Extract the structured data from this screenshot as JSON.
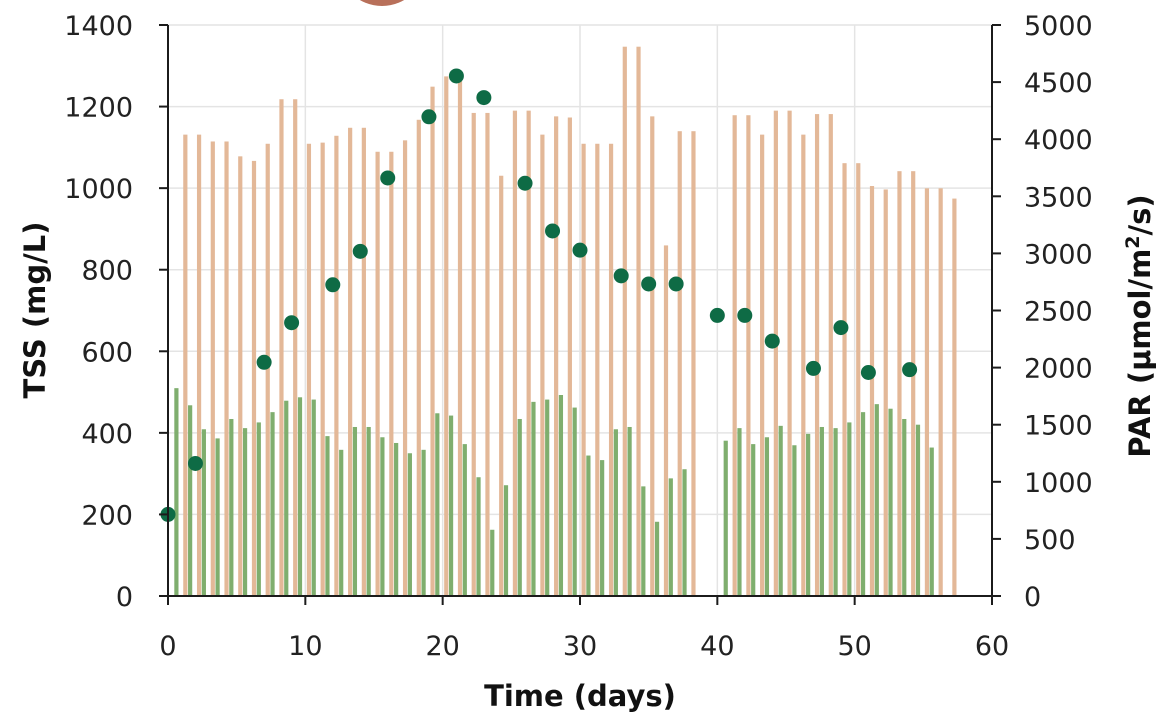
{
  "chart_data": {
    "type": "bar+scatter",
    "xlabel": "Time (days)",
    "ylabel_left": "TSS (mg/L)",
    "ylabel_right_prefix": "PAR (μmol/m",
    "ylabel_right_sup": "2",
    "ylabel_right_suffix": "/s)",
    "xlim": [
      0,
      60
    ],
    "ylim_left": [
      0,
      1400
    ],
    "ylim_right": [
      0,
      5000
    ],
    "x_ticks": [
      "0",
      "10",
      "20",
      "30",
      "40",
      "50",
      "60"
    ],
    "y_left_ticks": [
      "0",
      "200",
      "400",
      "600",
      "800",
      "1000",
      "1200",
      "1400"
    ],
    "y_right_ticks": [
      "0",
      "500",
      "1000",
      "1500",
      "2000",
      "2500",
      "3000",
      "3500",
      "4000",
      "4500",
      "5000"
    ],
    "grid": true,
    "colors": {
      "par_max": "#e3b898",
      "par_avg": "#7fae6e",
      "tss": "#0e6b45",
      "logo": "#b8705a"
    },
    "par_max_series": [
      {
        "day": 0,
        "value": 0
      },
      {
        "day": 1,
        "value": 4040
      },
      {
        "day": 2,
        "value": 4040
      },
      {
        "day": 3,
        "value": 3980
      },
      {
        "day": 4,
        "value": 3980
      },
      {
        "day": 5,
        "value": 3850
      },
      {
        "day": 6,
        "value": 3810
      },
      {
        "day": 7,
        "value": 3960
      },
      {
        "day": 8,
        "value": 4350
      },
      {
        "day": 9,
        "value": 4350
      },
      {
        "day": 10,
        "value": 3960
      },
      {
        "day": 11,
        "value": 3970
      },
      {
        "day": 12,
        "value": 4030
      },
      {
        "day": 13,
        "value": 4100
      },
      {
        "day": 14,
        "value": 4100
      },
      {
        "day": 15,
        "value": 3890
      },
      {
        "day": 16,
        "value": 3890
      },
      {
        "day": 17,
        "value": 3990
      },
      {
        "day": 18,
        "value": 4170
      },
      {
        "day": 19,
        "value": 4460
      },
      {
        "day": 20,
        "value": 4550
      },
      {
        "day": 21,
        "value": 4510
      },
      {
        "day": 22,
        "value": 4230
      },
      {
        "day": 23,
        "value": 4230
      },
      {
        "day": 24,
        "value": 3680
      },
      {
        "day": 25,
        "value": 4250
      },
      {
        "day": 26,
        "value": 4250
      },
      {
        "day": 27,
        "value": 4040
      },
      {
        "day": 28,
        "value": 4200
      },
      {
        "day": 29,
        "value": 4190
      },
      {
        "day": 30,
        "value": 3960
      },
      {
        "day": 31,
        "value": 3960
      },
      {
        "day": 32,
        "value": 3960
      },
      {
        "day": 33,
        "value": 4810
      },
      {
        "day": 34,
        "value": 4810
      },
      {
        "day": 35,
        "value": 4200
      },
      {
        "day": 36,
        "value": 3070
      },
      {
        "day": 37,
        "value": 4070
      },
      {
        "day": 38,
        "value": 4070
      },
      {
        "day": 39,
        "value": 0
      },
      {
        "day": 40,
        "value": 0
      },
      {
        "day": 41,
        "value": 4210
      },
      {
        "day": 42,
        "value": 4210
      },
      {
        "day": 43,
        "value": 4040
      },
      {
        "day": 44,
        "value": 4250
      },
      {
        "day": 45,
        "value": 4250
      },
      {
        "day": 46,
        "value": 4040
      },
      {
        "day": 47,
        "value": 4220
      },
      {
        "day": 48,
        "value": 4220
      },
      {
        "day": 49,
        "value": 3790
      },
      {
        "day": 50,
        "value": 3790
      },
      {
        "day": 51,
        "value": 3590
      },
      {
        "day": 52,
        "value": 3560
      },
      {
        "day": 53,
        "value": 3720
      },
      {
        "day": 54,
        "value": 3720
      },
      {
        "day": 55,
        "value": 3570
      },
      {
        "day": 56,
        "value": 3570
      },
      {
        "day": 57,
        "value": 3480
      }
    ],
    "par_avg_series": [
      {
        "day": 0,
        "value": 1820
      },
      {
        "day": 1,
        "value": 1670
      },
      {
        "day": 2,
        "value": 1460
      },
      {
        "day": 3,
        "value": 1380
      },
      {
        "day": 4,
        "value": 1550
      },
      {
        "day": 5,
        "value": 1470
      },
      {
        "day": 6,
        "value": 1520
      },
      {
        "day": 7,
        "value": 1610
      },
      {
        "day": 8,
        "value": 1710
      },
      {
        "day": 9,
        "value": 1740
      },
      {
        "day": 10,
        "value": 1720
      },
      {
        "day": 11,
        "value": 1400
      },
      {
        "day": 12,
        "value": 1280
      },
      {
        "day": 13,
        "value": 1480
      },
      {
        "day": 14,
        "value": 1480
      },
      {
        "day": 15,
        "value": 1390
      },
      {
        "day": 16,
        "value": 1340
      },
      {
        "day": 17,
        "value": 1250
      },
      {
        "day": 18,
        "value": 1280
      },
      {
        "day": 19,
        "value": 1600
      },
      {
        "day": 20,
        "value": 1580
      },
      {
        "day": 21,
        "value": 1330
      },
      {
        "day": 22,
        "value": 1040
      },
      {
        "day": 23,
        "value": 580
      },
      {
        "day": 24,
        "value": 970
      },
      {
        "day": 25,
        "value": 1550
      },
      {
        "day": 26,
        "value": 1700
      },
      {
        "day": 27,
        "value": 1720
      },
      {
        "day": 28,
        "value": 1760
      },
      {
        "day": 29,
        "value": 1650
      },
      {
        "day": 30,
        "value": 1230
      },
      {
        "day": 31,
        "value": 1190
      },
      {
        "day": 32,
        "value": 1460
      },
      {
        "day": 33,
        "value": 1480
      },
      {
        "day": 34,
        "value": 960
      },
      {
        "day": 35,
        "value": 650
      },
      {
        "day": 36,
        "value": 1030
      },
      {
        "day": 37,
        "value": 1110
      },
      {
        "day": 38,
        "value": 0
      },
      {
        "day": 39,
        "value": 0
      },
      {
        "day": 40,
        "value": 1360
      },
      {
        "day": 41,
        "value": 1470
      },
      {
        "day": 42,
        "value": 1330
      },
      {
        "day": 43,
        "value": 1390
      },
      {
        "day": 44,
        "value": 1490
      },
      {
        "day": 45,
        "value": 1320
      },
      {
        "day": 46,
        "value": 1420
      },
      {
        "day": 47,
        "value": 1480
      },
      {
        "day": 48,
        "value": 1470
      },
      {
        "day": 49,
        "value": 1520
      },
      {
        "day": 50,
        "value": 1610
      },
      {
        "day": 51,
        "value": 1680
      },
      {
        "day": 52,
        "value": 1640
      },
      {
        "day": 53,
        "value": 1550
      },
      {
        "day": 54,
        "value": 1500
      },
      {
        "day": 55,
        "value": 1300
      }
    ],
    "tss_series": [
      {
        "day": 0,
        "value": 200
      },
      {
        "day": 2,
        "value": 325
      },
      {
        "day": 7,
        "value": 573
      },
      {
        "day": 9,
        "value": 670
      },
      {
        "day": 12,
        "value": 763
      },
      {
        "day": 14,
        "value": 845
      },
      {
        "day": 16,
        "value": 1025
      },
      {
        "day": 19,
        "value": 1175
      },
      {
        "day": 21,
        "value": 1275
      },
      {
        "day": 23,
        "value": 1222
      },
      {
        "day": 26,
        "value": 1012
      },
      {
        "day": 28,
        "value": 895
      },
      {
        "day": 30,
        "value": 848
      },
      {
        "day": 33,
        "value": 785
      },
      {
        "day": 35,
        "value": 765
      },
      {
        "day": 37,
        "value": 765
      },
      {
        "day": 40,
        "value": 688
      },
      {
        "day": 42,
        "value": 688
      },
      {
        "day": 44,
        "value": 625
      },
      {
        "day": 47,
        "value": 558
      },
      {
        "day": 49,
        "value": 658
      },
      {
        "day": 51,
        "value": 548
      },
      {
        "day": 54,
        "value": 555
      }
    ]
  }
}
